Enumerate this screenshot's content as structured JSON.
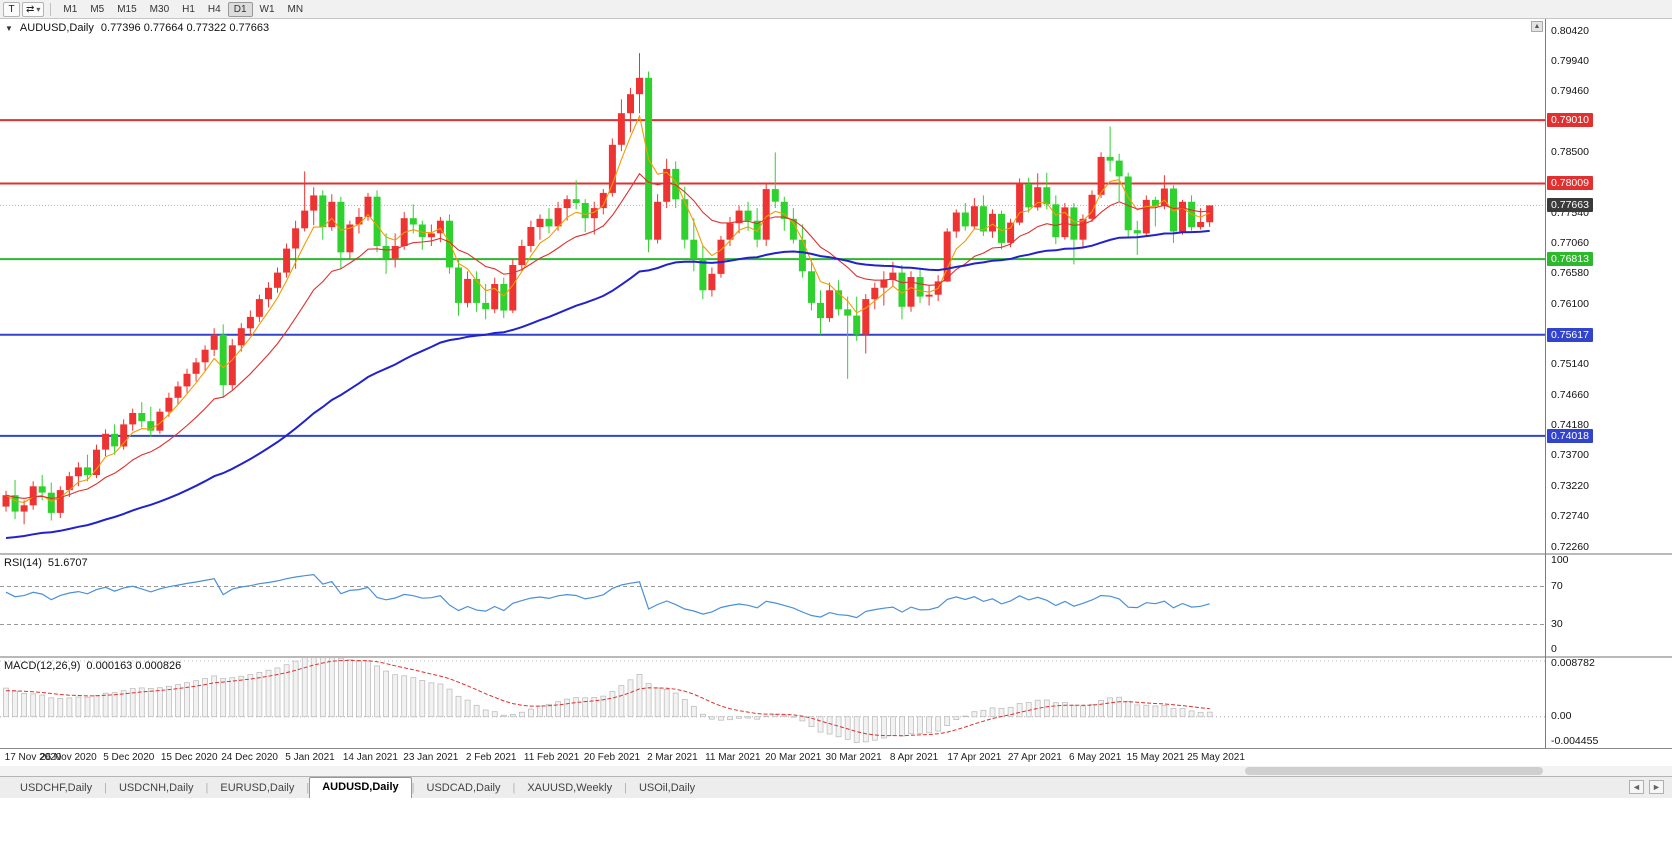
{
  "toolbar": {
    "cursor_tool": "T",
    "chart_tool_icon": "⇄",
    "dropdown_caret": "▾",
    "timeframes": [
      "M1",
      "M5",
      "M15",
      "M30",
      "H1",
      "H4",
      "D1",
      "W1",
      "MN"
    ],
    "active_timeframe": "D1"
  },
  "chart_header": {
    "collapse_icon": "▼",
    "symbol_title": "AUDUSD,Daily",
    "ohlc_text": "0.77396 0.77664 0.77322 0.77663"
  },
  "icons": {
    "scroll_up": "▲",
    "tab_left": "◄",
    "tab_right": "►"
  },
  "price_axis": {
    "ticks": [
      "0.80420",
      "0.79940",
      "0.79460",
      "0.78980",
      "0.78500",
      "0.78020",
      "0.77540",
      "0.77060",
      "0.76580",
      "0.76100",
      "0.75620",
      "0.75140",
      "0.74660",
      "0.74180",
      "0.73700",
      "0.73220",
      "0.72740",
      "0.72260"
    ]
  },
  "price_tags": [
    {
      "label": "0.79010",
      "value": 0.7901,
      "color": "#e03030",
      "kind": "resistance"
    },
    {
      "label": "0.78009",
      "value": 0.78009,
      "color": "#e03030",
      "kind": "resistance"
    },
    {
      "label": "0.77663",
      "value": 0.77663,
      "color": "#3a3a3a",
      "kind": "current"
    },
    {
      "label": "0.76813",
      "value": 0.76813,
      "color": "#2db82d",
      "kind": "support"
    },
    {
      "label": "0.75617",
      "value": 0.75617,
      "color": "#3344cc",
      "kind": "support"
    },
    {
      "label": "0.74018",
      "value": 0.74018,
      "color": "#3344cc",
      "kind": "support"
    }
  ],
  "rsi_label": "RSI(14)",
  "rsi_value": "51.6707",
  "rsi_axis": [
    "100",
    "70",
    "30",
    "0"
  ],
  "macd_label": "MACD(12,26,9)",
  "macd_values": "0.000163 0.000826",
  "macd_axis": [
    "0.008782",
    "0.00",
    "-0.004455"
  ],
  "date_axis": [
    "17 Nov 2020",
    "26 Nov 2020",
    "5 Dec 2020",
    "15 Dec 2020",
    "24 Dec 2020",
    "5 Jan 2021",
    "14 Jan 2021",
    "23 Jan 2021",
    "2 Feb 2021",
    "11 Feb 2021",
    "20 Feb 2021",
    "2 Mar 2021",
    "11 Mar 2021",
    "20 Mar 2021",
    "30 Mar 2021",
    "8 Apr 2021",
    "17 Apr 2021",
    "27 Apr 2021",
    "6 May 2021",
    "15 May 2021",
    "25 May 2021"
  ],
  "tabs": [
    "USDCHF,Daily",
    "USDCNH,Daily",
    "EURUSD,Daily",
    "AUDUSD,Daily",
    "USDCAD,Daily",
    "XAUUSD,Weekly",
    "USOil,Daily"
  ],
  "active_tab": "AUDUSD,Daily",
  "chart_data": {
    "type": "candlestick",
    "symbol": "AUDUSD",
    "timeframe": "Daily",
    "x_start_date": "17 Nov 2020",
    "x_end_date": "25 May 2021",
    "y_axis": {
      "top": 0.8042,
      "bottom": 0.72245
    },
    "up_color": "#ee3333",
    "down_color": "#2ed12e",
    "current_price": 0.77663,
    "horizontal_levels": [
      {
        "price": 0.7901,
        "color": "#e03030"
      },
      {
        "price": 0.78009,
        "color": "#e03030"
      },
      {
        "price": 0.76813,
        "color": "#2db82d"
      },
      {
        "price": 0.75617,
        "color": "#3344cc"
      },
      {
        "price": 0.74018,
        "color": "#3344cc"
      }
    ],
    "moving_averages": [
      {
        "name": "fast-orange",
        "color": "#f59b00",
        "alpha": 0.35,
        "seed": null,
        "width": 1.1
      },
      {
        "name": "medium-red",
        "color": "#e03030",
        "alpha": 0.13,
        "seed": null,
        "width": 1.1
      },
      {
        "name": "slow-blue",
        "color": "#2222cc",
        "alpha": 0.034,
        "seed": 0.7238,
        "width": 2
      }
    ],
    "rsi": {
      "period": 14,
      "levels": [
        70,
        30
      ],
      "range": [
        0,
        100
      ],
      "color": "#4a90d9",
      "seed_gain": 0.0016,
      "seed_loss": 0.0009
    },
    "macd": {
      "fast": 12,
      "slow": 26,
      "signal_period": 9,
      "axis_max": 0.008782,
      "axis_min": -0.004455,
      "histogram_fill": "#f2f2f2",
      "histogram_stroke": "#bbbbbb",
      "signal_color": "#e03030",
      "seed_fast": 0.73,
      "seed_slow": 0.7252,
      "seed_signal": 0.004
    },
    "candles_ohlc": [
      [
        0.729,
        0.7315,
        0.7282,
        0.7308
      ],
      [
        0.7308,
        0.7332,
        0.727,
        0.7282
      ],
      [
        0.7282,
        0.73,
        0.7262,
        0.7292
      ],
      [
        0.7292,
        0.733,
        0.7285,
        0.7322
      ],
      [
        0.7322,
        0.734,
        0.73,
        0.7312
      ],
      [
        0.7312,
        0.7328,
        0.7268,
        0.728
      ],
      [
        0.728,
        0.7322,
        0.7272,
        0.7316
      ],
      [
        0.7316,
        0.7345,
        0.7305,
        0.7338
      ],
      [
        0.7338,
        0.736,
        0.7322,
        0.7352
      ],
      [
        0.7352,
        0.7372,
        0.733,
        0.734
      ],
      [
        0.734,
        0.7388,
        0.7335,
        0.738
      ],
      [
        0.738,
        0.7412,
        0.737,
        0.7405
      ],
      [
        0.7405,
        0.742,
        0.7372,
        0.7385
      ],
      [
        0.7385,
        0.7428,
        0.738,
        0.742
      ],
      [
        0.742,
        0.7445,
        0.741,
        0.7438
      ],
      [
        0.7438,
        0.7455,
        0.7415,
        0.7425
      ],
      [
        0.7425,
        0.7448,
        0.74,
        0.741
      ],
      [
        0.741,
        0.7445,
        0.7405,
        0.744
      ],
      [
        0.744,
        0.747,
        0.7432,
        0.7462
      ],
      [
        0.7462,
        0.7488,
        0.7452,
        0.748
      ],
      [
        0.748,
        0.7508,
        0.747,
        0.75
      ],
      [
        0.75,
        0.7525,
        0.7488,
        0.7518
      ],
      [
        0.7518,
        0.7545,
        0.7505,
        0.7538
      ],
      [
        0.7538,
        0.7572,
        0.7528,
        0.7562
      ],
      [
        0.7562,
        0.7578,
        0.7462,
        0.7482
      ],
      [
        0.7482,
        0.7555,
        0.7475,
        0.7545
      ],
      [
        0.7545,
        0.758,
        0.7535,
        0.7572
      ],
      [
        0.7572,
        0.76,
        0.756,
        0.759
      ],
      [
        0.759,
        0.7625,
        0.7582,
        0.7618
      ],
      [
        0.7618,
        0.7645,
        0.7605,
        0.7636
      ],
      [
        0.7636,
        0.7668,
        0.7628,
        0.766
      ],
      [
        0.766,
        0.7706,
        0.7652,
        0.7698
      ],
      [
        0.7698,
        0.7742,
        0.7666,
        0.773
      ],
      [
        0.773,
        0.782,
        0.7725,
        0.7758
      ],
      [
        0.7758,
        0.7795,
        0.7735,
        0.7782
      ],
      [
        0.7782,
        0.779,
        0.7712,
        0.7732
      ],
      [
        0.7732,
        0.7784,
        0.7726,
        0.7772
      ],
      [
        0.7772,
        0.778,
        0.7666,
        0.7692
      ],
      [
        0.7692,
        0.7742,
        0.7682,
        0.7736
      ],
      [
        0.7736,
        0.7762,
        0.7722,
        0.7748
      ],
      [
        0.7748,
        0.7786,
        0.7742,
        0.778
      ],
      [
        0.778,
        0.779,
        0.7692,
        0.7702
      ],
      [
        0.7702,
        0.7722,
        0.7658,
        0.7682
      ],
      [
        0.7682,
        0.7722,
        0.7668,
        0.7702
      ],
      [
        0.7702,
        0.7756,
        0.7696,
        0.7746
      ],
      [
        0.7746,
        0.7768,
        0.7722,
        0.7736
      ],
      [
        0.7736,
        0.7742,
        0.7696,
        0.7716
      ],
      [
        0.7716,
        0.7736,
        0.7702,
        0.7722
      ],
      [
        0.7722,
        0.7748,
        0.7708,
        0.7742
      ],
      [
        0.7742,
        0.7752,
        0.7658,
        0.7668
      ],
      [
        0.7668,
        0.7682,
        0.7592,
        0.7612
      ],
      [
        0.7612,
        0.7662,
        0.7605,
        0.765
      ],
      [
        0.765,
        0.7662,
        0.7598,
        0.7612
      ],
      [
        0.7612,
        0.7642,
        0.7586,
        0.7602
      ],
      [
        0.7602,
        0.7652,
        0.7596,
        0.7642
      ],
      [
        0.7642,
        0.7652,
        0.7588,
        0.76
      ],
      [
        0.76,
        0.7682,
        0.7596,
        0.7672
      ],
      [
        0.7672,
        0.7712,
        0.7662,
        0.7702
      ],
      [
        0.7702,
        0.7742,
        0.7692,
        0.7732
      ],
      [
        0.7732,
        0.7752,
        0.7712,
        0.7745
      ],
      [
        0.7745,
        0.7762,
        0.7722,
        0.7733
      ],
      [
        0.7733,
        0.7772,
        0.7726,
        0.7762
      ],
      [
        0.7762,
        0.7782,
        0.7742,
        0.7776
      ],
      [
        0.7776,
        0.7806,
        0.776,
        0.777
      ],
      [
        0.777,
        0.7776,
        0.7724,
        0.7746
      ],
      [
        0.7746,
        0.7772,
        0.772,
        0.7762
      ],
      [
        0.7762,
        0.7792,
        0.7752,
        0.7786
      ],
      [
        0.7786,
        0.7872,
        0.778,
        0.7862
      ],
      [
        0.7862,
        0.7934,
        0.7852,
        0.7912
      ],
      [
        0.7912,
        0.7952,
        0.7882,
        0.7942
      ],
      [
        0.7942,
        0.8007,
        0.7912,
        0.7968
      ],
      [
        0.7968,
        0.7978,
        0.7692,
        0.7712
      ],
      [
        0.7712,
        0.7784,
        0.7706,
        0.7772
      ],
      [
        0.7772,
        0.784,
        0.7762,
        0.7824
      ],
      [
        0.7824,
        0.7836,
        0.7762,
        0.7776
      ],
      [
        0.7776,
        0.7796,
        0.7698,
        0.7712
      ],
      [
        0.7712,
        0.7746,
        0.7662,
        0.7682
      ],
      [
        0.7682,
        0.7702,
        0.7618,
        0.7632
      ],
      [
        0.7632,
        0.7668,
        0.7622,
        0.7658
      ],
      [
        0.7658,
        0.7718,
        0.7652,
        0.7712
      ],
      [
        0.7712,
        0.7748,
        0.7702,
        0.7738
      ],
      [
        0.7738,
        0.7766,
        0.7722,
        0.7758
      ],
      [
        0.7758,
        0.7772,
        0.7726,
        0.7742
      ],
      [
        0.7742,
        0.7762,
        0.77,
        0.7712
      ],
      [
        0.7712,
        0.7802,
        0.7702,
        0.7792
      ],
      [
        0.7792,
        0.785,
        0.7762,
        0.7772
      ],
      [
        0.7772,
        0.778,
        0.7726,
        0.7745
      ],
      [
        0.7745,
        0.7762,
        0.7706,
        0.7712
      ],
      [
        0.7712,
        0.7736,
        0.7652,
        0.7662
      ],
      [
        0.7662,
        0.7682,
        0.76,
        0.7612
      ],
      [
        0.7612,
        0.7632,
        0.7562,
        0.7588
      ],
      [
        0.7588,
        0.7644,
        0.7582,
        0.7632
      ],
      [
        0.7632,
        0.7648,
        0.7592,
        0.7602
      ],
      [
        0.7602,
        0.7622,
        0.7492,
        0.7592
      ],
      [
        0.7592,
        0.7622,
        0.7552,
        0.7562
      ],
      [
        0.7562,
        0.7626,
        0.7532,
        0.7618
      ],
      [
        0.7618,
        0.7644,
        0.7602,
        0.7636
      ],
      [
        0.7636,
        0.7662,
        0.7608,
        0.7649
      ],
      [
        0.7649,
        0.7677,
        0.7638,
        0.766
      ],
      [
        0.766,
        0.7672,
        0.7586,
        0.7606
      ],
      [
        0.7606,
        0.7662,
        0.7598,
        0.7653
      ],
      [
        0.7653,
        0.7666,
        0.7612,
        0.7622
      ],
      [
        0.7622,
        0.764,
        0.7608,
        0.7625
      ],
      [
        0.7625,
        0.7656,
        0.7615,
        0.7646
      ],
      [
        0.7646,
        0.773,
        0.7645,
        0.7725
      ],
      [
        0.7725,
        0.776,
        0.7715,
        0.7755
      ],
      [
        0.7755,
        0.777,
        0.7726,
        0.7733
      ],
      [
        0.7733,
        0.7778,
        0.7728,
        0.7765
      ],
      [
        0.7765,
        0.7782,
        0.7718,
        0.7725
      ],
      [
        0.7725,
        0.776,
        0.7715,
        0.7753
      ],
      [
        0.7753,
        0.7758,
        0.7697,
        0.7707
      ],
      [
        0.7707,
        0.7745,
        0.77,
        0.7739
      ],
      [
        0.7739,
        0.7809,
        0.7735,
        0.78
      ],
      [
        0.78,
        0.781,
        0.7755,
        0.7763
      ],
      [
        0.7763,
        0.7817,
        0.7758,
        0.7795
      ],
      [
        0.7795,
        0.7818,
        0.776,
        0.7768
      ],
      [
        0.7768,
        0.7782,
        0.7705,
        0.7716
      ],
      [
        0.7716,
        0.777,
        0.7712,
        0.7763
      ],
      [
        0.7763,
        0.777,
        0.7673,
        0.7712
      ],
      [
        0.7712,
        0.7752,
        0.77,
        0.7745
      ],
      [
        0.7745,
        0.779,
        0.774,
        0.7783
      ],
      [
        0.7783,
        0.785,
        0.7778,
        0.7843
      ],
      [
        0.7843,
        0.7891,
        0.782,
        0.7837
      ],
      [
        0.7837,
        0.7848,
        0.7773,
        0.7812
      ],
      [
        0.7812,
        0.7818,
        0.7716,
        0.7727
      ],
      [
        0.7727,
        0.7742,
        0.7688,
        0.7722
      ],
      [
        0.7722,
        0.7782,
        0.7718,
        0.7775
      ],
      [
        0.7775,
        0.778,
        0.7733,
        0.7765
      ],
      [
        0.7765,
        0.7814,
        0.776,
        0.7793
      ],
      [
        0.7793,
        0.7798,
        0.7707,
        0.7725
      ],
      [
        0.7725,
        0.7775,
        0.772,
        0.7772
      ],
      [
        0.7772,
        0.7782,
        0.7726,
        0.7732
      ],
      [
        0.7732,
        0.7762,
        0.7728,
        0.774
      ],
      [
        0.77396,
        0.77664,
        0.77322,
        0.77663
      ]
    ]
  }
}
